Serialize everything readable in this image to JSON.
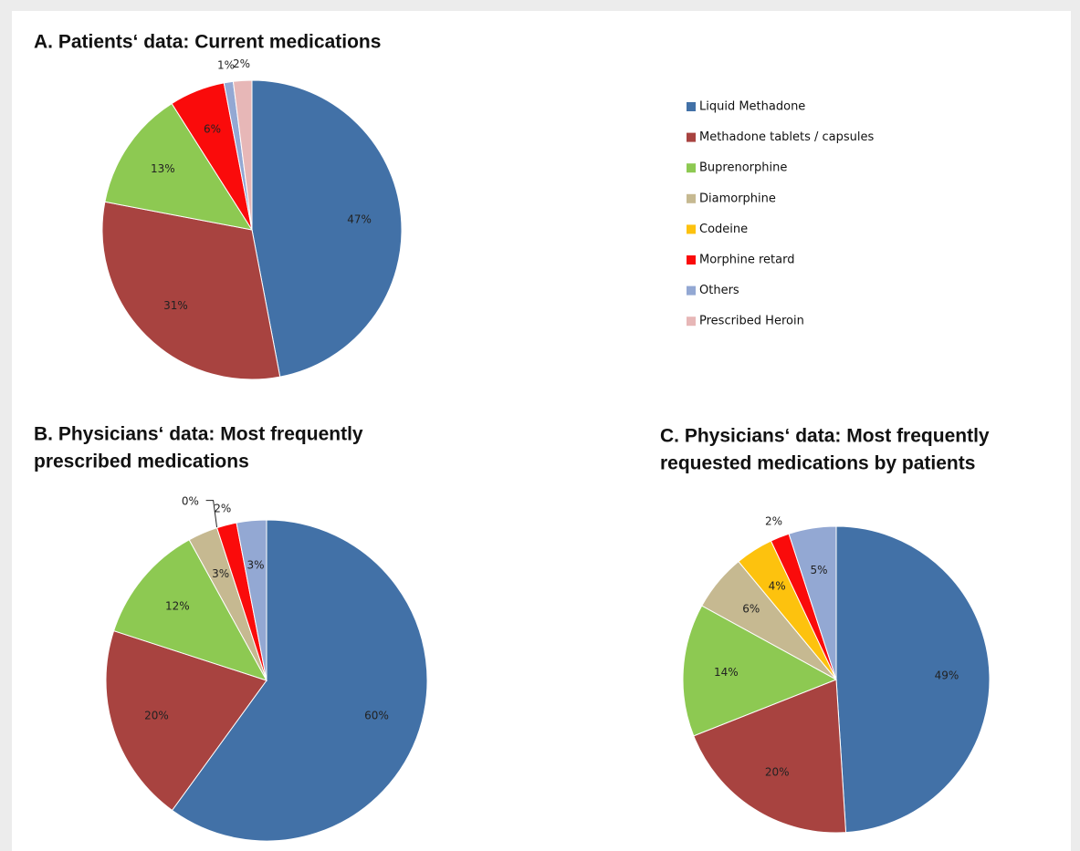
{
  "chart_data": [
    {
      "type": "pie",
      "title": [
        "A. Patients‘ data: Current medications"
      ],
      "values": [
        47,
        31,
        13,
        null,
        null,
        6,
        1,
        2
      ],
      "value_labels": [
        "47%",
        "31%",
        "13%",
        null,
        null,
        "6%",
        "1%",
        "2%"
      ]
    },
    {
      "type": "pie",
      "title": [
        "B. Physicians‘ data: Most frequently",
        "prescribed medications"
      ],
      "values": [
        60,
        20,
        12,
        3,
        0,
        2,
        3,
        null
      ],
      "value_labels": [
        "60%",
        "20%",
        "12%",
        "3%",
        "0%",
        "2%",
        "3%",
        null
      ]
    },
    {
      "type": "pie",
      "title": [
        "C. Physicians‘ data: Most frequently",
        "requested medications by patients"
      ],
      "values": [
        49,
        20,
        14,
        6,
        4,
        2,
        5,
        null
      ],
      "value_labels": [
        "49%",
        "20%",
        "14%",
        "6%",
        "4%",
        "2%",
        "5%",
        null
      ]
    }
  ],
  "legend": {
    "labels": [
      "Liquid Methadone",
      "Methadone tablets / capsules",
      "Buprenorphine",
      "Diamorphine",
      "Codeine",
      "Morphine retard",
      "Others",
      "Prescribed Heroin"
    ],
    "colors": [
      "#4271a7",
      "#a84340",
      "#8dc952",
      "#c6b991",
      "#fdc20e",
      "#fa0b0b",
      "#93a8d3",
      "#e7b7b7"
    ]
  }
}
